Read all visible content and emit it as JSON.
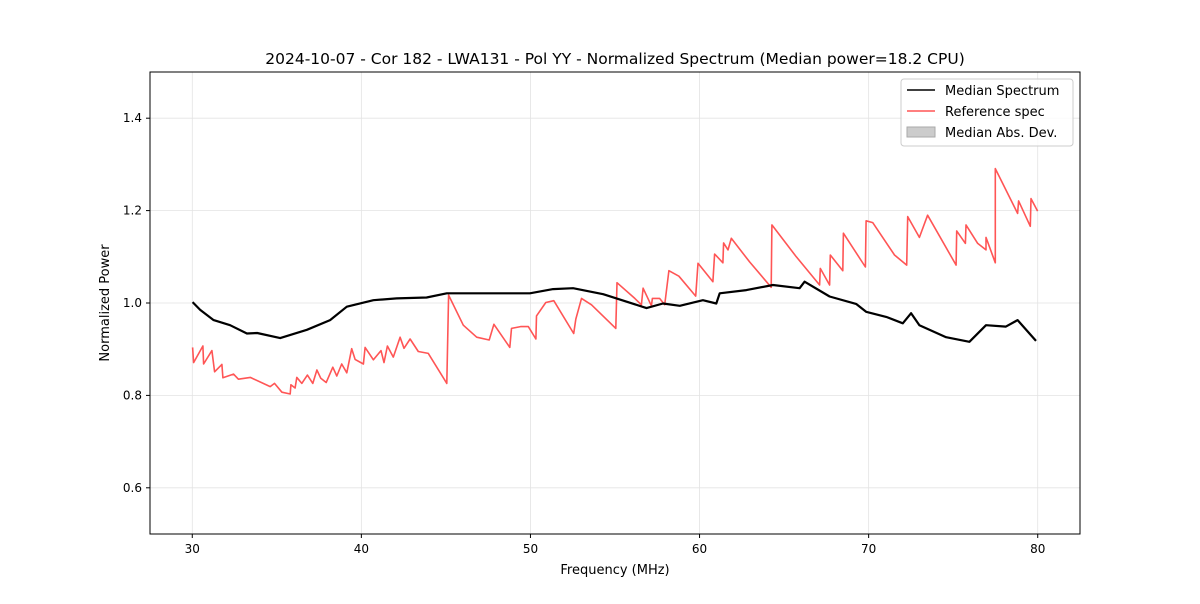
{
  "chart_data": {
    "type": "line",
    "title": "2024-10-07 - Cor 182 - LWA131 - Pol YY - Normalized Spectrum (Median power=18.2 CPU)",
    "xlabel": "Frequency (MHz)",
    "ylabel": "Normalized Power",
    "xlim": [
      27.5,
      82.5
    ],
    "ylim": [
      0.5,
      1.5
    ],
    "xticks": [
      30,
      40,
      50,
      60,
      70,
      80
    ],
    "xtick_labels": [
      "30",
      "40",
      "50",
      "60",
      "70",
      "80"
    ],
    "yticks": [
      0.6,
      0.8,
      1.0,
      1.2,
      1.4
    ],
    "ytick_labels": [
      "0.6",
      "0.8",
      "1.0",
      "1.2",
      "1.4"
    ],
    "grid": true,
    "legend_position": "top-right",
    "legend": [
      "Median Spectrum",
      "Reference spec",
      "Median Abs. Dev."
    ],
    "colors": {
      "median": "#000000",
      "reference": "#ff5555",
      "mad": "#cccccc"
    },
    "series": [
      {
        "name": "Median Spectrum",
        "points": [
          [
            30.02,
            1.002
          ],
          [
            30.47,
            0.985
          ],
          [
            31.26,
            0.963
          ],
          [
            32.24,
            0.952
          ],
          [
            33.23,
            0.934
          ],
          [
            33.84,
            0.935
          ],
          [
            35.2,
            0.924
          ],
          [
            36.78,
            0.942
          ],
          [
            38.15,
            0.963
          ],
          [
            39.14,
            0.992
          ],
          [
            40.71,
            1.006
          ],
          [
            42.09,
            1.01
          ],
          [
            43.86,
            1.012
          ],
          [
            45.05,
            1.021
          ],
          [
            46.62,
            1.021
          ],
          [
            49.97,
            1.021
          ],
          [
            51.34,
            1.03
          ],
          [
            52.52,
            1.032
          ],
          [
            54.3,
            1.019
          ],
          [
            55.09,
            1.01
          ],
          [
            56.86,
            0.989
          ],
          [
            57.84,
            0.999
          ],
          [
            58.83,
            0.994
          ],
          [
            60.2,
            1.006
          ],
          [
            60.99,
            0.999
          ],
          [
            61.19,
            1.021
          ],
          [
            62.77,
            1.028
          ],
          [
            64.34,
            1.039
          ],
          [
            65.92,
            1.032
          ],
          [
            66.21,
            1.046
          ],
          [
            67.69,
            1.014
          ],
          [
            69.26,
            0.998
          ],
          [
            69.85,
            0.981
          ],
          [
            71.04,
            0.97
          ],
          [
            72.02,
            0.956
          ],
          [
            72.51,
            0.978
          ],
          [
            73.0,
            0.952
          ],
          [
            74.58,
            0.926
          ],
          [
            75.96,
            0.916
          ],
          [
            76.94,
            0.952
          ],
          [
            78.12,
            0.949
          ],
          [
            78.81,
            0.963
          ],
          [
            79.9,
            0.918
          ]
        ]
      },
      {
        "name": "Reference spec",
        "points": [
          [
            30.02,
            0.904
          ],
          [
            30.08,
            0.871
          ],
          [
            30.63,
            0.907
          ],
          [
            30.67,
            0.868
          ],
          [
            31.16,
            0.897
          ],
          [
            31.32,
            0.851
          ],
          [
            31.75,
            0.867
          ],
          [
            31.81,
            0.838
          ],
          [
            32.44,
            0.846
          ],
          [
            32.73,
            0.835
          ],
          [
            33.43,
            0.839
          ],
          [
            34.61,
            0.819
          ],
          [
            34.86,
            0.826
          ],
          [
            35.3,
            0.807
          ],
          [
            35.79,
            0.803
          ],
          [
            35.83,
            0.823
          ],
          [
            36.08,
            0.816
          ],
          [
            36.18,
            0.839
          ],
          [
            36.48,
            0.826
          ],
          [
            36.81,
            0.844
          ],
          [
            37.13,
            0.826
          ],
          [
            37.37,
            0.855
          ],
          [
            37.6,
            0.837
          ],
          [
            37.92,
            0.828
          ],
          [
            38.31,
            0.861
          ],
          [
            38.55,
            0.842
          ],
          [
            38.84,
            0.868
          ],
          [
            39.14,
            0.849
          ],
          [
            39.43,
            0.901
          ],
          [
            39.63,
            0.878
          ],
          [
            40.12,
            0.868
          ],
          [
            40.22,
            0.904
          ],
          [
            40.71,
            0.877
          ],
          [
            41.16,
            0.897
          ],
          [
            41.34,
            0.871
          ],
          [
            41.54,
            0.907
          ],
          [
            41.89,
            0.883
          ],
          [
            42.29,
            0.926
          ],
          [
            42.52,
            0.902
          ],
          [
            42.88,
            0.922
          ],
          [
            43.37,
            0.895
          ],
          [
            43.96,
            0.891
          ],
          [
            45.05,
            0.826
          ],
          [
            45.16,
            1.017
          ],
          [
            46.03,
            0.952
          ],
          [
            46.82,
            0.926
          ],
          [
            47.56,
            0.92
          ],
          [
            47.84,
            0.954
          ],
          [
            48.78,
            0.904
          ],
          [
            48.88,
            0.945
          ],
          [
            49.42,
            0.949
          ],
          [
            49.87,
            0.949
          ],
          [
            50.32,
            0.922
          ],
          [
            50.36,
            0.972
          ],
          [
            50.91,
            1.001
          ],
          [
            51.38,
            1.005
          ],
          [
            52.56,
            0.934
          ],
          [
            52.68,
            0.965
          ],
          [
            53.02,
            1.01
          ],
          [
            53.61,
            0.996
          ],
          [
            55.05,
            0.945
          ],
          [
            55.12,
            1.044
          ],
          [
            56.17,
            1.01
          ],
          [
            56.56,
            0.996
          ],
          [
            56.66,
            1.032
          ],
          [
            57.15,
            0.994
          ],
          [
            57.21,
            1.01
          ],
          [
            57.64,
            1.01
          ],
          [
            57.94,
            0.996
          ],
          [
            58.19,
            1.07
          ],
          [
            58.78,
            1.058
          ],
          [
            59.77,
            1.015
          ],
          [
            59.91,
            1.086
          ],
          [
            60.79,
            1.046
          ],
          [
            60.89,
            1.106
          ],
          [
            61.38,
            1.087
          ],
          [
            61.42,
            1.13
          ],
          [
            61.68,
            1.115
          ],
          [
            61.88,
            1.14
          ],
          [
            62.96,
            1.089
          ],
          [
            64.24,
            1.034
          ],
          [
            64.28,
            1.169
          ],
          [
            65.72,
            1.1
          ],
          [
            67.1,
            1.039
          ],
          [
            67.14,
            1.075
          ],
          [
            67.69,
            1.039
          ],
          [
            67.73,
            1.104
          ],
          [
            68.47,
            1.07
          ],
          [
            68.51,
            1.151
          ],
          [
            69.81,
            1.078
          ],
          [
            69.85,
            1.178
          ],
          [
            70.24,
            1.174
          ],
          [
            71.53,
            1.104
          ],
          [
            72.25,
            1.082
          ],
          [
            72.31,
            1.187
          ],
          [
            73.0,
            1.142
          ],
          [
            73.49,
            1.19
          ],
          [
            75.17,
            1.082
          ],
          [
            75.21,
            1.156
          ],
          [
            75.72,
            1.129
          ],
          [
            75.76,
            1.169
          ],
          [
            76.45,
            1.129
          ],
          [
            76.94,
            1.115
          ],
          [
            76.94,
            1.142
          ],
          [
            77.49,
            1.087
          ],
          [
            77.49,
            1.291
          ],
          [
            78.81,
            1.194
          ],
          [
            78.87,
            1.221
          ],
          [
            79.56,
            1.166
          ],
          [
            79.6,
            1.226
          ],
          [
            79.99,
            1.199
          ]
        ]
      }
    ]
  }
}
